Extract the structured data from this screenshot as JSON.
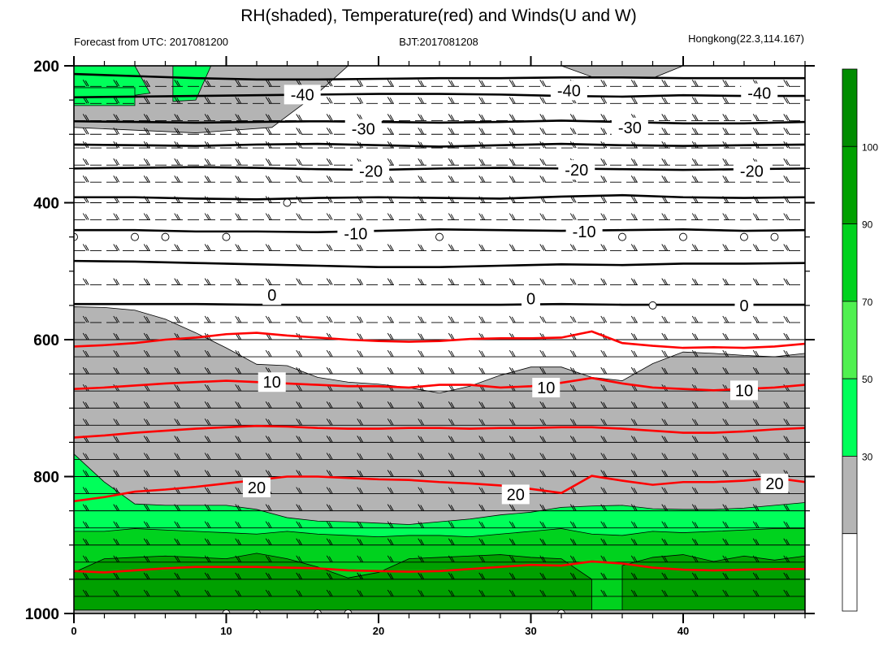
{
  "chart_data": {
    "type": "contour",
    "title": "RH(shaded), Temperature(red) and Winds(U and W)",
    "left_string": "Forecast from UTC: 2017081200",
    "center_string": "BJT:2017081208",
    "right_string": "Hongkong(22.3,114.167)",
    "x_ticks": [
      0,
      10,
      20,
      30,
      40
    ],
    "xlim": [
      0,
      48
    ],
    "y_ticks": [
      200,
      400,
      600,
      800,
      1000
    ],
    "ylim": [
      200,
      1000
    ],
    "colorbar": {
      "levels": [
        30,
        50,
        70,
        90,
        100
      ],
      "colors": [
        "#ffffff",
        "#b4b4b4",
        "#00ff5a",
        "#50f050",
        "#00d21e",
        "#00a000",
        "#008c00"
      ]
    },
    "rh_bands": [
      {
        "name": "gray",
        "color": "#b4b4b4",
        "x": [
          0,
          2,
          4,
          6,
          8,
          10,
          12,
          14,
          16,
          18,
          20,
          22,
          24,
          26,
          28,
          30,
          32,
          34,
          36,
          38,
          40,
          42,
          44,
          46,
          48
        ],
        "top": [
          552,
          553,
          557,
          570,
          590,
          612,
          636,
          638,
          655,
          662,
          665,
          670,
          678,
          668,
          652,
          640,
          640,
          655,
          660,
          635,
          618,
          620,
          623,
          625,
          620
        ]
      },
      {
        "name": "light-green",
        "color": "#00ff5a",
        "x": [
          0,
          2,
          4,
          6,
          8,
          10,
          12,
          14,
          16,
          18,
          20,
          22,
          24,
          26,
          28,
          30,
          32,
          34,
          36,
          38,
          40,
          42,
          44,
          46,
          48
        ],
        "top": [
          767,
          808,
          840,
          842,
          842,
          842,
          848,
          860,
          865,
          866,
          868,
          870,
          866,
          862,
          856,
          852,
          845,
          843,
          842,
          847,
          848,
          848,
          846,
          842,
          838
        ]
      },
      {
        "name": "green",
        "color": "#00d21e",
        "x": [
          0,
          2,
          4,
          6,
          8,
          10,
          12,
          14,
          16,
          18,
          20,
          22,
          24,
          26,
          28,
          30,
          32,
          34,
          36,
          38,
          40,
          42,
          44,
          46,
          48
        ],
        "top": [
          880,
          880,
          876,
          878,
          880,
          882,
          884,
          880,
          884,
          886,
          888,
          886,
          886,
          888,
          884,
          880,
          876,
          884,
          886,
          880,
          882,
          880,
          878,
          876,
          876
        ]
      },
      {
        "name": "dark-green-1",
        "color": "#00a000",
        "x": [
          0,
          2,
          4,
          6,
          8,
          10,
          12,
          14,
          16,
          18,
          20,
          22,
          24,
          26,
          28,
          30,
          32,
          34
        ],
        "top": [
          940,
          920,
          918,
          916,
          918,
          920,
          912,
          920,
          932,
          948,
          940,
          920,
          918,
          916,
          914,
          918,
          920,
          950
        ]
      },
      {
        "name": "dark-green-2",
        "color": "#00a000",
        "x": [
          36,
          38,
          40,
          42,
          44,
          46,
          48
        ],
        "top": [
          930,
          918,
          914,
          924,
          916,
          922,
          916
        ]
      }
    ],
    "temperature_red": [
      {
        "label": "",
        "x": [
          0,
          2,
          4,
          6,
          8,
          10,
          12,
          14,
          16,
          18,
          20,
          22,
          24,
          26,
          28,
          30,
          32,
          34,
          36,
          38,
          40,
          42,
          44,
          46,
          48
        ],
        "p": [
          610,
          608,
          605,
          600,
          597,
          592,
          590,
          594,
          597,
          600,
          602,
          603,
          602,
          599,
          598,
          598,
          597,
          588,
          605,
          609,
          612,
          611,
          612,
          610,
          606
        ]
      },
      {
        "label": "10",
        "x": [
          0,
          2,
          4,
          6,
          8,
          10,
          12,
          14,
          16,
          18,
          20,
          22,
          24,
          26,
          28,
          30,
          32,
          34,
          36,
          38,
          40,
          42,
          44,
          46,
          48
        ],
        "p": [
          672,
          670,
          667,
          664,
          662,
          660,
          662,
          664,
          666,
          668,
          668,
          670,
          666,
          666,
          670,
          668,
          663,
          656,
          664,
          670,
          672,
          674,
          672,
          670,
          666
        ]
      },
      {
        "label": "",
        "x": [
          0,
          2,
          4,
          6,
          8,
          10,
          12,
          14,
          16,
          18,
          20,
          22,
          24,
          26,
          28,
          30,
          32,
          34,
          36,
          38,
          40,
          42,
          44,
          46,
          48
        ],
        "p": [
          743,
          740,
          736,
          733,
          730,
          728,
          726,
          727,
          729,
          730,
          730,
          729,
          729,
          730,
          729,
          729,
          728,
          728,
          730,
          733,
          736,
          736,
          734,
          731,
          729
        ]
      },
      {
        "label": "20",
        "x": [
          0,
          2,
          4,
          6,
          8,
          10,
          12,
          14,
          16,
          18,
          20,
          22,
          24,
          26,
          28,
          30,
          32,
          34,
          36,
          38,
          40,
          42,
          44,
          46,
          48
        ],
        "p": [
          836,
          830,
          822,
          819,
          815,
          810,
          805,
          800,
          800,
          802,
          804,
          805,
          808,
          810,
          813,
          818,
          824,
          799,
          806,
          812,
          808,
          808,
          806,
          802,
          808
        ]
      },
      {
        "label": "",
        "x": [
          0,
          2,
          4,
          6,
          8,
          10,
          12,
          14,
          16,
          18,
          20,
          22,
          24,
          26,
          28,
          30,
          32,
          34,
          36,
          38,
          40,
          42,
          44,
          46,
          48
        ],
        "p": [
          938,
          940,
          937,
          934,
          932,
          932,
          932,
          933,
          934,
          937,
          938,
          939,
          938,
          935,
          932,
          929,
          930,
          924,
          927,
          933,
          936,
          937,
          936,
          935,
          935
        ]
      }
    ],
    "temperature_black": [
      {
        "label": "-40",
        "x": [
          0,
          4,
          8,
          12,
          16,
          20,
          24,
          28,
          32,
          36,
          40,
          44,
          48
        ],
        "p": [
          212,
          215,
          218,
          220,
          220,
          219,
          218,
          218,
          217,
          217,
          218,
          218,
          218
        ]
      },
      {
        "label": "-40",
        "x": [
          0,
          4,
          8,
          12,
          16,
          20,
          24,
          28,
          32,
          36,
          40,
          44,
          48
        ],
        "p": [
          246,
          245,
          244,
          243,
          242,
          241,
          241,
          242,
          244,
          245,
          243,
          244,
          244
        ]
      },
      {
        "label": "-30",
        "x": [
          0,
          4,
          8,
          12,
          16,
          20,
          24,
          28,
          32,
          36,
          40,
          44,
          48
        ],
        "p": [
          281,
          282,
          283,
          282,
          281,
          282,
          283,
          282,
          280,
          282,
          284,
          284,
          282
        ]
      },
      {
        "label": "-20",
        "x": [
          0,
          4,
          8,
          12,
          16,
          20,
          24,
          28,
          32,
          36,
          40,
          44,
          48
        ],
        "p": [
          315,
          316,
          317,
          315,
          314,
          316,
          318,
          316,
          314,
          316,
          317,
          316,
          315
        ]
      },
      {
        "label": "-20",
        "x": [
          0,
          4,
          8,
          12,
          16,
          20,
          24,
          28,
          32,
          36,
          40,
          44,
          48
        ],
        "p": [
          350,
          349,
          348,
          349,
          351,
          352,
          350,
          349,
          350,
          351,
          352,
          351,
          350
        ]
      },
      {
        "label": "",
        "x": [
          0,
          4,
          8,
          12,
          16,
          20,
          24,
          28,
          32,
          36,
          40,
          44,
          48
        ],
        "p": [
          392,
          392,
          394,
          395,
          393,
          392,
          393,
          394,
          391,
          389,
          392,
          393,
          392
        ]
      },
      {
        "label": "-10",
        "x": [
          0,
          4,
          8,
          12,
          16,
          20,
          24,
          28,
          32,
          36,
          40,
          44,
          48
        ],
        "p": [
          440,
          440,
          442,
          442,
          443,
          441,
          439,
          440,
          441,
          440,
          439,
          441,
          440
        ]
      },
      {
        "label": "",
        "x": [
          0,
          4,
          8,
          12,
          16,
          20,
          24,
          28,
          32,
          36,
          40,
          44,
          48
        ],
        "p": [
          485,
          486,
          488,
          490,
          492,
          494,
          494,
          492,
          490,
          491,
          489,
          489,
          488
        ]
      },
      {
        "label": "0",
        "x": [
          0,
          4,
          8,
          12,
          16,
          20,
          24,
          28,
          32,
          36,
          40,
          44,
          48
        ],
        "p": [
          548,
          548,
          548,
          549,
          549,
          549,
          549,
          549,
          548,
          549,
          549,
          549,
          549
        ]
      }
    ],
    "line_labels": [
      {
        "text": "-40",
        "x": 15.0,
        "p": 242,
        "color": "black"
      },
      {
        "text": "-40",
        "x": 32.5,
        "p": 236,
        "color": "black"
      },
      {
        "text": "-40",
        "x": 45.0,
        "p": 240,
        "color": "black"
      },
      {
        "text": "-30",
        "x": 19.0,
        "p": 292,
        "color": "black"
      },
      {
        "text": "-30",
        "x": 36.5,
        "p": 290,
        "color": "black"
      },
      {
        "text": "-20",
        "x": 19.5,
        "p": 354,
        "color": "black"
      },
      {
        "text": "-20",
        "x": 33.0,
        "p": 352,
        "color": "black"
      },
      {
        "text": "-20",
        "x": 44.5,
        "p": 354,
        "color": "black"
      },
      {
        "text": "-10",
        "x": 18.5,
        "p": 445,
        "color": "black"
      },
      {
        "text": "-10",
        "x": 33.5,
        "p": 442,
        "color": "black"
      },
      {
        "text": "0",
        "x": 13.0,
        "p": 535,
        "color": "black"
      },
      {
        "text": "0",
        "x": 30.0,
        "p": 540,
        "color": "black"
      },
      {
        "text": "0",
        "x": 44.0,
        "p": 550,
        "color": "black"
      },
      {
        "text": "10",
        "x": 13.0,
        "p": 662,
        "color": "red"
      },
      {
        "text": "10",
        "x": 31.0,
        "p": 670,
        "color": "red"
      },
      {
        "text": "10",
        "x": 44.0,
        "p": 674,
        "color": "red"
      },
      {
        "text": "20",
        "x": 12.0,
        "p": 816,
        "color": "red"
      },
      {
        "text": "20",
        "x": 29.0,
        "p": 826,
        "color": "red"
      },
      {
        "text": "20",
        "x": 46.0,
        "p": 810,
        "color": "red"
      }
    ],
    "wind_barb_levels": [
      230,
      255,
      280,
      300,
      320,
      345,
      370,
      400,
      425,
      470,
      520,
      575,
      600,
      625,
      650,
      675,
      700,
      725,
      750,
      775,
      800,
      825,
      850,
      875,
      900,
      925,
      950,
      975
    ],
    "calm_circles": [
      {
        "x": 14,
        "p": 400
      },
      {
        "x": 0,
        "p": 450
      },
      {
        "x": 4,
        "p": 450
      },
      {
        "x": 6,
        "p": 450
      },
      {
        "x": 10,
        "p": 450
      },
      {
        "x": 24,
        "p": 450
      },
      {
        "x": 36,
        "p": 450
      },
      {
        "x": 40,
        "p": 450
      },
      {
        "x": 44,
        "p": 450
      },
      {
        "x": 46,
        "p": 450
      },
      {
        "x": 38,
        "p": 550
      },
      {
        "x": 10,
        "p": 1000
      },
      {
        "x": 12,
        "p": 1000
      },
      {
        "x": 16,
        "p": 1000
      },
      {
        "x": 18,
        "p": 1000
      },
      {
        "x": 32,
        "p": 1000
      }
    ]
  }
}
